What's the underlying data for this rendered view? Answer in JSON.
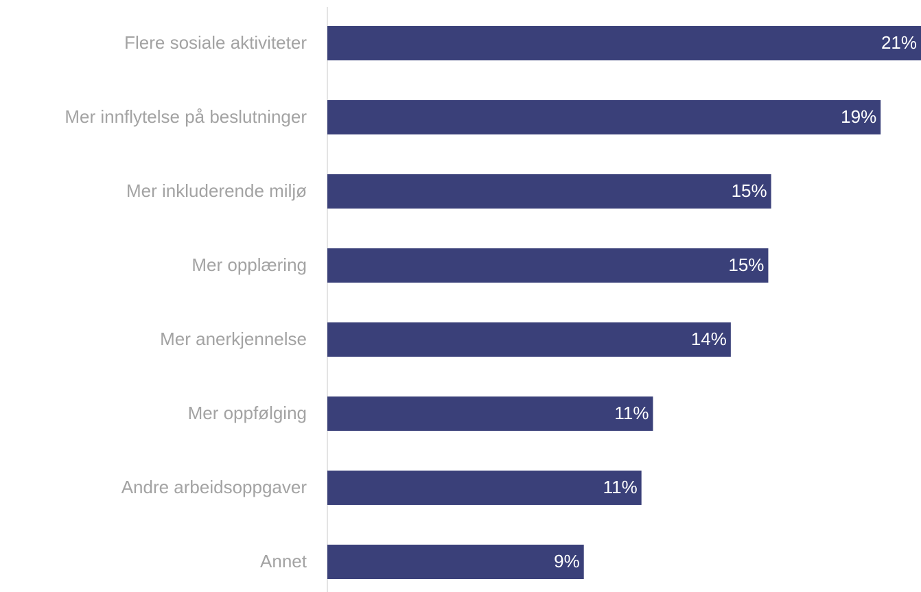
{
  "chart_data": {
    "type": "bar",
    "orientation": "horizontal",
    "categories": [
      "Flere sosiale aktiviteter",
      "Mer innflytelse på beslutninger",
      "Mer inkluderende miljø",
      "Mer opplæring",
      "Mer anerkjennelse",
      "Mer oppfølging",
      "Andre arbeidsoppgaver",
      "Annet"
    ],
    "values": [
      20.6,
      19.2,
      15.4,
      15.3,
      14.0,
      11.3,
      10.9,
      8.9
    ],
    "value_labels": [
      "21%",
      "19%",
      "15%",
      "15%",
      "14%",
      "11%",
      "11%",
      "9%"
    ],
    "color": "#3a4079",
    "xlim": [
      0,
      20.6
    ]
  }
}
